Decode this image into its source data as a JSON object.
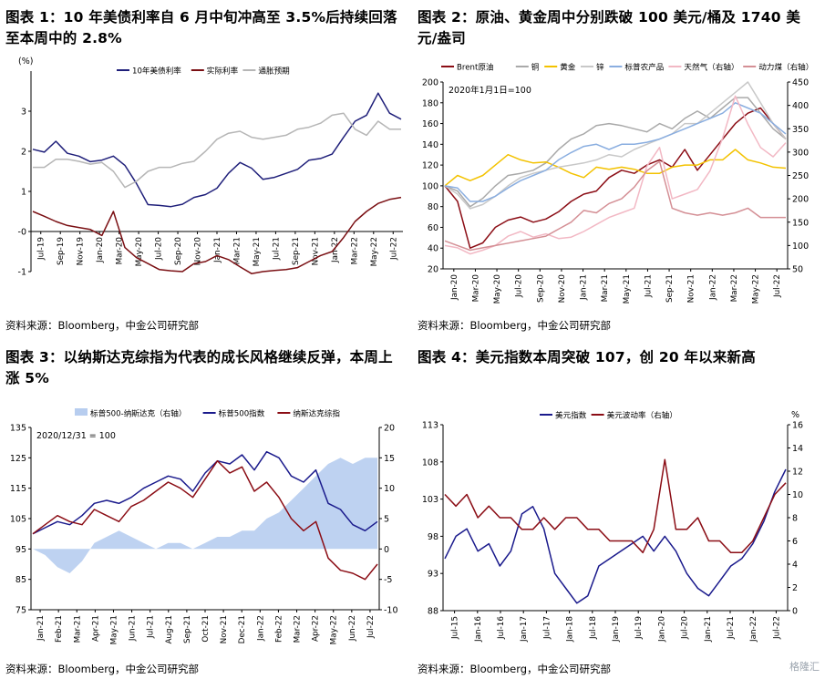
{
  "panels": [
    {
      "title": "图表 1：10 年美债利率自 6 月中旬冲高至 3.5%后持续回落至本周中的 2.8%",
      "source": "资料来源：Bloomberg，中金公司研究部"
    },
    {
      "title": "图表 2：原油、黄金周中分别跌破 100 美元/桶及 1740 美元/盎司",
      "source": "资料来源：Bloomberg，中金公司研究部"
    },
    {
      "title": "图表 3：以纳斯达克综指为代表的成长风格继续反弹，本周上涨 5%",
      "source": "资料来源：Bloomberg，中金公司研究部"
    },
    {
      "title": "图表 4：美元指数本周突破 107，创 20 年以来新高",
      "source": "资料来源：Bloomberg，中金公司研究部"
    }
  ],
  "watermark": "格隆汇",
  "chart_data": [
    {
      "type": "line",
      "y_unit": "(%)",
      "ylim": [
        -1,
        4
      ],
      "yticks": [
        -1,
        0,
        1,
        2,
        3
      ],
      "ytick_labels": [
        "-1",
        "-0",
        "1",
        "2",
        "3"
      ],
      "x_labels": [
        "Jul-19",
        "Sep-19",
        "Nov-19",
        "Jan-20",
        "Mar-20",
        "May-20",
        "Jul-20",
        "Sep-20",
        "Nov-20",
        "Jan-21",
        "Mar-21",
        "May-21",
        "Jul-21",
        "Sep-21",
        "Nov-21",
        "Jan-22",
        "Mar-22",
        "May-22",
        "Jul-22"
      ],
      "legend_position": "top",
      "series": [
        {
          "name": "10年美债利率",
          "color": "#1f1f7a",
          "values": [
            2.05,
            1.98,
            2.25,
            1.95,
            1.88,
            1.74,
            1.78,
            1.88,
            1.65,
            1.2,
            0.67,
            0.65,
            0.62,
            0.68,
            0.85,
            0.92,
            1.08,
            1.45,
            1.72,
            1.58,
            1.3,
            1.35,
            1.45,
            1.55,
            1.78,
            1.82,
            1.93,
            2.35,
            2.75,
            2.9,
            3.45,
            2.95,
            2.8
          ]
        },
        {
          "name": "实际利率",
          "color": "#7a0f13",
          "values": [
            0.5,
            0.38,
            0.25,
            0.15,
            0.1,
            0.05,
            -0.1,
            0.5,
            -0.4,
            -0.65,
            -0.8,
            -0.95,
            -0.98,
            -1.0,
            -0.8,
            -0.75,
            -0.6,
            -0.7,
            -0.88,
            -1.05,
            -1.0,
            -0.97,
            -0.95,
            -0.9,
            -0.75,
            -0.6,
            -0.5,
            -0.15,
            0.25,
            0.5,
            0.7,
            0.8,
            0.85
          ]
        },
        {
          "name": "通胀预期",
          "color": "#b6b6b6",
          "values": [
            1.6,
            1.6,
            1.8,
            1.8,
            1.75,
            1.68,
            1.72,
            1.5,
            1.1,
            1.25,
            1.5,
            1.6,
            1.6,
            1.7,
            1.75,
            2.0,
            2.3,
            2.45,
            2.5,
            2.35,
            2.3,
            2.35,
            2.4,
            2.55,
            2.6,
            2.7,
            2.9,
            2.95,
            2.55,
            2.4,
            2.75,
            2.55,
            2.55
          ]
        }
      ]
    },
    {
      "type": "line",
      "annotation": "2020年1月1日=100",
      "ylim": [
        20,
        200
      ],
      "yticks": [
        20,
        40,
        60,
        80,
        100,
        120,
        140,
        160,
        180,
        200
      ],
      "y2lim": [
        50,
        450
      ],
      "y2ticks": [
        50,
        100,
        150,
        200,
        250,
        300,
        350,
        400,
        450
      ],
      "x_labels": [
        "Jan-20",
        "Mar-20",
        "May-20",
        "Jul-20",
        "Sep-20",
        "Nov-20",
        "Jan-21",
        "Mar-21",
        "May-21",
        "Jul-21",
        "Sep-21",
        "Nov-21",
        "Jan-22",
        "Mar-22",
        "May-22",
        "Jul-22"
      ],
      "legend_position": "top",
      "series": [
        {
          "name": "Brent原油",
          "axis": "left",
          "color": "#8b0d15",
          "values": [
            100,
            85,
            40,
            45,
            60,
            67,
            70,
            65,
            68,
            75,
            85,
            92,
            95,
            108,
            115,
            112,
            120,
            125,
            118,
            135,
            115,
            130,
            145,
            160,
            170,
            175,
            160,
            145
          ]
        },
        {
          "name": "铜",
          "axis": "left",
          "color": "#a9a9a9",
          "values": [
            100,
            95,
            80,
            88,
            100,
            110,
            112,
            115,
            122,
            135,
            145,
            150,
            158,
            160,
            158,
            155,
            152,
            160,
            155,
            165,
            172,
            165,
            175,
            185,
            185,
            170,
            155,
            145
          ]
        },
        {
          "name": "黄金",
          "axis": "left",
          "color": "#f3c200",
          "values": [
            100,
            110,
            105,
            110,
            120,
            130,
            125,
            122,
            123,
            118,
            112,
            108,
            118,
            116,
            118,
            116,
            112,
            112,
            118,
            120,
            120,
            125,
            125,
            135,
            125,
            122,
            118,
            117
          ]
        },
        {
          "name": "锌",
          "axis": "left",
          "color": "#c8c8c8",
          "values": [
            100,
            92,
            78,
            82,
            90,
            100,
            108,
            112,
            115,
            118,
            120,
            122,
            125,
            130,
            128,
            135,
            140,
            145,
            150,
            160,
            160,
            170,
            180,
            190,
            200,
            180,
            160,
            145
          ]
        },
        {
          "name": "标普农产品",
          "axis": "left",
          "color": "#8aaee0",
          "values": [
            100,
            98,
            85,
            85,
            90,
            98,
            105,
            110,
            115,
            125,
            132,
            138,
            140,
            135,
            140,
            140,
            142,
            145,
            150,
            155,
            160,
            165,
            170,
            180,
            175,
            170,
            160,
            150
          ]
        },
        {
          "name": "天然气（右轴）",
          "axis": "right",
          "color": "#f2b8c4",
          "values": [
            100,
            95,
            82,
            90,
            100,
            120,
            130,
            118,
            125,
            115,
            118,
            130,
            145,
            160,
            170,
            180,
            270,
            310,
            200,
            210,
            220,
            260,
            330,
            420,
            360,
            310,
            290,
            320
          ]
        },
        {
          "name": "动力煤（右轴）",
          "axis": "right",
          "color": "#d48f95",
          "values": [
            110,
            100,
            90,
            95,
            100,
            105,
            110,
            115,
            120,
            135,
            150,
            175,
            170,
            190,
            200,
            225,
            260,
            280,
            180,
            170,
            165,
            170,
            165,
            170,
            180,
            160,
            160,
            160
          ]
        }
      ]
    },
    {
      "type": "line",
      "annotation": "2020/12/31 = 100",
      "ylim": [
        75,
        135
      ],
      "yticks": [
        75,
        85,
        95,
        105,
        115,
        125,
        135
      ],
      "y2lim": [
        -10,
        20
      ],
      "y2ticks": [
        -10,
        -5,
        0,
        5,
        10,
        15,
        20
      ],
      "x_labels": [
        "Jan-21",
        "Feb-21",
        "Mar-21",
        "Apr-21",
        "May-21",
        "Jun-21",
        "Jul-21",
        "Aug-21",
        "Sep-21",
        "Oct-21",
        "Nov-21",
        "Dec-21",
        "Jan-22",
        "Feb-22",
        "Mar-22",
        "Apr-22",
        "May-22",
        "Jun-22",
        "Jul-22"
      ],
      "legend_position": "top",
      "series": [
        {
          "name": "标普500-纳斯达克（右轴）",
          "axis": "right",
          "kind": "area",
          "color": "#b7cdef",
          "values": [
            0,
            -1,
            -3,
            -4,
            -2,
            1,
            2,
            3,
            2,
            1,
            0,
            1,
            1,
            0,
            1,
            2,
            2,
            3,
            3,
            5,
            6,
            8,
            10,
            12,
            14,
            15,
            14,
            15,
            15
          ]
        },
        {
          "name": "标普500指数",
          "axis": "left",
          "color": "#1a1a8c",
          "values": [
            100,
            102,
            104,
            103,
            106,
            110,
            111,
            110,
            112,
            115,
            117,
            119,
            118,
            114,
            120,
            124,
            123,
            126,
            121,
            127,
            125,
            119,
            117,
            121,
            110,
            108,
            103,
            101,
            104
          ]
        },
        {
          "name": "纳斯达克综指",
          "axis": "left",
          "color": "#8b0d15",
          "values": [
            100,
            103,
            106,
            104,
            103,
            108,
            106,
            104,
            109,
            111,
            114,
            117,
            115,
            112,
            118,
            124,
            120,
            122,
            114,
            117,
            112,
            105,
            101,
            104,
            92,
            88,
            87,
            85,
            90
          ]
        }
      ]
    },
    {
      "type": "line",
      "ylim": [
        88,
        113
      ],
      "yticks": [
        88,
        93,
        98,
        103,
        108,
        113
      ],
      "y2lim": [
        0,
        16
      ],
      "y2ticks": [
        0,
        2,
        4,
        6,
        8,
        10,
        12,
        14,
        16
      ],
      "y2_unit": "%",
      "x_labels": [
        "Jul-15",
        "Jan-16",
        "Jul-16",
        "Jan-17",
        "Jul-17",
        "Jan-18",
        "Jul-18",
        "Jan-19",
        "Jul-19",
        "Jan-20",
        "Jul-20",
        "Jan-21",
        "Jul-21",
        "Jan-22",
        "Jul-22"
      ],
      "legend_position": "top",
      "series": [
        {
          "name": "美元指数",
          "axis": "left",
          "color": "#1a1a8c",
          "values": [
            95,
            98,
            99,
            96,
            97,
            94,
            96,
            101,
            102,
            99,
            93,
            91,
            89,
            90,
            94,
            95,
            96,
            97,
            98,
            96,
            98,
            96,
            93,
            91,
            90,
            92,
            94,
            95,
            97,
            100,
            104,
            107
          ]
        },
        {
          "name": "美元波动率（右轴）",
          "axis": "right",
          "color": "#8b0d15",
          "values": [
            10,
            9,
            10,
            8,
            9,
            8,
            8,
            7,
            7,
            8,
            7,
            8,
            8,
            7,
            7,
            6,
            6,
            6,
            5,
            7,
            13,
            7,
            7,
            8,
            6,
            6,
            5,
            5,
            6,
            8,
            10,
            11
          ]
        }
      ]
    }
  ]
}
